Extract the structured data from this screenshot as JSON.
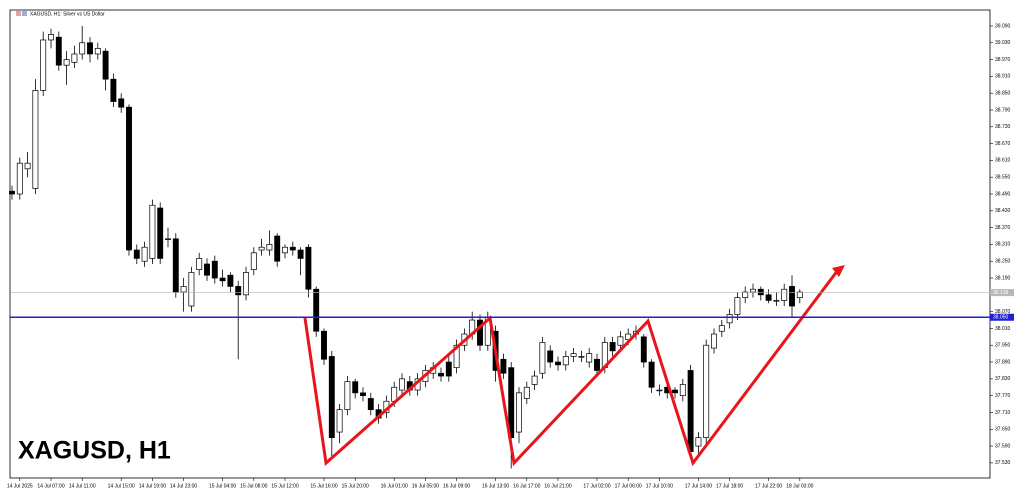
{
  "chart_data": {
    "type": "candlestick",
    "title": "XAGUSD, H1: Silver vs US Dollar",
    "symbol_label": "XAGUSD, H1",
    "up_color": "#ffffff",
    "down_color": "#000000",
    "categories": [
      null,
      "14 Jul 2025",
      null,
      null,
      null,
      "14 Jul 07:00",
      null,
      null,
      null,
      "14 Jul 11:00",
      null,
      null,
      null,
      null,
      "14 Jul 15:00",
      null,
      null,
      null,
      "14 Jul 19:00",
      null,
      null,
      null,
      "14 Jul 23:00",
      null,
      null,
      null,
      null,
      "15 Jul 04:00",
      null,
      null,
      null,
      "15 Jul 08:00",
      null,
      null,
      null,
      "15 Jul 12:00",
      null,
      null,
      null,
      null,
      "15 Jul 16:00",
      null,
      null,
      null,
      "15 Jul 20:00",
      null,
      null,
      null,
      null,
      "16 Jul 01:00",
      null,
      null,
      null,
      "16 Jul 05:00",
      null,
      null,
      null,
      "16 Jul 09:00",
      null,
      null,
      null,
      null,
      "16 Jul 13:00",
      null,
      null,
      null,
      "16 Jul 17:00",
      null,
      null,
      null,
      "16 Jul 21:00",
      null,
      null,
      null,
      null,
      "17 Jul 02:00",
      null,
      null,
      null,
      "17 Jul 06:00",
      null,
      null,
      null,
      "17 Jul 10:00",
      null,
      null,
      null,
      null,
      "17 Jul 14:00",
      null,
      null,
      null,
      "17 Jul 18:00",
      null,
      null,
      null,
      null,
      "17 Jul 22:00",
      null,
      null,
      null,
      "18 Jul 03:00"
    ],
    "open": [
      38.5,
      38.49,
      38.58,
      38.51,
      38.86,
      39.04,
      39.05,
      38.95,
      38.96,
      38.99,
      39.03,
      38.99,
      39.0,
      38.9,
      38.83,
      38.8,
      38.29,
      38.25,
      38.26,
      38.44,
      38.33,
      38.33,
      38.14,
      38.09,
      38.22,
      38.24,
      38.25,
      38.19,
      38.2,
      38.16,
      38.13,
      38.22,
      38.29,
      38.29,
      38.34,
      38.28,
      38.3,
      38.29,
      38.3,
      38.15,
      38.0,
      37.91,
      37.64,
      37.72,
      37.82,
      37.78,
      37.76,
      37.72,
      37.71,
      37.75,
      37.79,
      37.82,
      37.79,
      37.82,
      37.85,
      37.85,
      37.89,
      37.87,
      37.95,
      37.99,
      38.04,
      37.95,
      38.0,
      37.9,
      37.87,
      37.64,
      37.76,
      37.81,
      37.85,
      37.93,
      37.89,
      37.88,
      37.91,
      37.91,
      37.89,
      37.9,
      37.87,
      37.96,
      37.95,
      37.97,
      37.99,
      37.98,
      37.89,
      37.79,
      37.8,
      37.79,
      37.77,
      37.86,
      37.59,
      37.62,
      37.94,
      38.0,
      38.03,
      38.06,
      38.12,
      38.14,
      38.15,
      38.13,
      38.11,
      38.11,
      38.16,
      38.12
    ],
    "high": [
      38.52,
      38.62,
      38.64,
      38.9,
      39.07,
      39.08,
      39.07,
      39.0,
      39.02,
      39.09,
      39.05,
      39.03,
      39.01,
      38.92,
      38.85,
      38.81,
      38.31,
      38.32,
      38.47,
      38.46,
      38.37,
      38.35,
      38.19,
      38.23,
      38.28,
      38.26,
      38.27,
      38.22,
      38.21,
      38.18,
      38.23,
      38.3,
      38.33,
      38.36,
      38.35,
      38.31,
      38.32,
      38.3,
      38.31,
      38.16,
      38.01,
      37.93,
      37.74,
      37.84,
      37.83,
      37.8,
      37.78,
      37.74,
      37.77,
      37.82,
      37.85,
      37.84,
      37.85,
      37.88,
      37.89,
      37.87,
      37.91,
      37.97,
      38.01,
      38.07,
      38.06,
      38.07,
      38.02,
      37.92,
      37.89,
      37.8,
      37.82,
      37.86,
      37.98,
      37.95,
      37.91,
      37.93,
      37.94,
      37.93,
      37.94,
      37.92,
      37.98,
      37.98,
      38.0,
      38.01,
      38.02,
      37.99,
      37.9,
      37.81,
      37.81,
      37.8,
      37.83,
      37.88,
      37.64,
      37.97,
      38.01,
      38.04,
      38.08,
      38.14,
      38.16,
      38.17,
      38.16,
      38.15,
      38.14,
      38.17,
      38.2,
      38.15
    ],
    "low": [
      38.47,
      38.47,
      38.55,
      38.49,
      38.84,
      39.01,
      38.93,
      38.88,
      38.94,
      38.97,
      38.96,
      38.97,
      38.86,
      38.8,
      38.78,
      38.27,
      38.24,
      38.23,
      38.24,
      38.24,
      38.3,
      38.12,
      38.07,
      38.07,
      38.2,
      38.18,
      38.17,
      38.16,
      38.14,
      37.9,
      38.11,
      38.2,
      38.27,
      38.27,
      38.23,
      38.26,
      38.27,
      38.2,
      38.12,
      37.98,
      37.88,
      37.55,
      37.6,
      37.7,
      37.76,
      37.75,
      37.7,
      37.67,
      37.69,
      37.73,
      37.77,
      37.77,
      37.77,
      37.8,
      37.83,
      37.82,
      37.82,
      37.85,
      37.93,
      37.97,
      37.93,
      37.93,
      37.82,
      37.83,
      37.51,
      37.6,
      37.74,
      37.79,
      37.83,
      37.87,
      37.86,
      37.86,
      37.89,
      37.89,
      37.87,
      37.84,
      37.85,
      37.91,
      37.93,
      37.95,
      37.97,
      37.87,
      37.78,
      37.77,
      37.76,
      37.76,
      37.75,
      37.55,
      37.56,
      37.6,
      37.92,
      37.98,
      38.01,
      38.04,
      38.1,
      38.12,
      38.11,
      38.1,
      38.09,
      38.09,
      38.05,
      38.1
    ],
    "close": [
      38.49,
      38.6,
      38.6,
      38.86,
      39.04,
      39.06,
      38.95,
      38.97,
      38.99,
      39.03,
      38.99,
      39.01,
      38.9,
      38.82,
      38.8,
      38.29,
      38.26,
      38.3,
      38.45,
      38.26,
      38.33,
      38.14,
      38.16,
      38.21,
      38.26,
      38.2,
      38.19,
      38.18,
      38.16,
      38.13,
      38.21,
      38.28,
      38.3,
      38.31,
      38.25,
      38.3,
      38.29,
      38.26,
      38.15,
      38.0,
      37.9,
      37.62,
      37.72,
      37.82,
      37.78,
      37.77,
      37.72,
      37.69,
      37.75,
      37.8,
      37.83,
      37.79,
      37.83,
      37.86,
      37.87,
      37.84,
      37.84,
      37.95,
      37.99,
      38.04,
      37.95,
      38.05,
      37.86,
      37.85,
      37.62,
      37.78,
      37.8,
      37.84,
      37.96,
      37.89,
      37.88,
      37.91,
      37.92,
      37.91,
      37.92,
      37.86,
      37.96,
      37.93,
      37.98,
      37.99,
      38.0,
      37.89,
      37.8,
      37.79,
      37.78,
      37.78,
      37.81,
      37.57,
      37.62,
      37.95,
      37.99,
      38.02,
      38.06,
      38.12,
      38.14,
      38.15,
      38.13,
      38.11,
      38.11,
      38.15,
      38.09,
      38.14
    ],
    "ylim": [
      37.476,
      39.147
    ],
    "yticks": [
      {
        "value": 39.09,
        "label": "39.090"
      },
      {
        "value": 39.03,
        "label": "39.030"
      },
      {
        "value": 38.97,
        "label": "38.970"
      },
      {
        "value": 38.91,
        "label": "38.910"
      },
      {
        "value": 38.85,
        "label": "38.850"
      },
      {
        "value": 38.79,
        "label": "38.790"
      },
      {
        "value": 38.73,
        "label": "38.730"
      },
      {
        "value": 38.67,
        "label": "38.670"
      },
      {
        "value": 38.61,
        "label": "38.610"
      },
      {
        "value": 38.55,
        "label": "38.550"
      },
      {
        "value": 38.49,
        "label": "38.490"
      },
      {
        "value": 38.43,
        "label": "38.430"
      },
      {
        "value": 38.37,
        "label": "38.370"
      },
      {
        "value": 38.31,
        "label": "38.310"
      },
      {
        "value": 38.25,
        "label": "38.250"
      },
      {
        "value": 38.19,
        "label": "38.190"
      },
      {
        "value": 38.13,
        "label": "38.130"
      },
      {
        "value": 38.07,
        "label": "38.070"
      },
      {
        "value": 38.01,
        "label": "38.010"
      },
      {
        "value": 37.95,
        "label": "37.950"
      },
      {
        "value": 37.89,
        "label": "37.890"
      },
      {
        "value": 37.83,
        "label": "37.830"
      },
      {
        "value": 37.77,
        "label": "37.770"
      },
      {
        "value": 37.71,
        "label": "37.710"
      },
      {
        "value": 37.65,
        "label": "37.650"
      },
      {
        "value": 37.59,
        "label": "37.590"
      },
      {
        "value": 37.53,
        "label": "37.530"
      }
    ],
    "hline": {
      "value": 38.05,
      "label": "38.050",
      "color": "#1f1fd6"
    },
    "last_price": {
      "value": 38.138,
      "label": "38.138",
      "color": "#b8b8b8"
    }
  }
}
